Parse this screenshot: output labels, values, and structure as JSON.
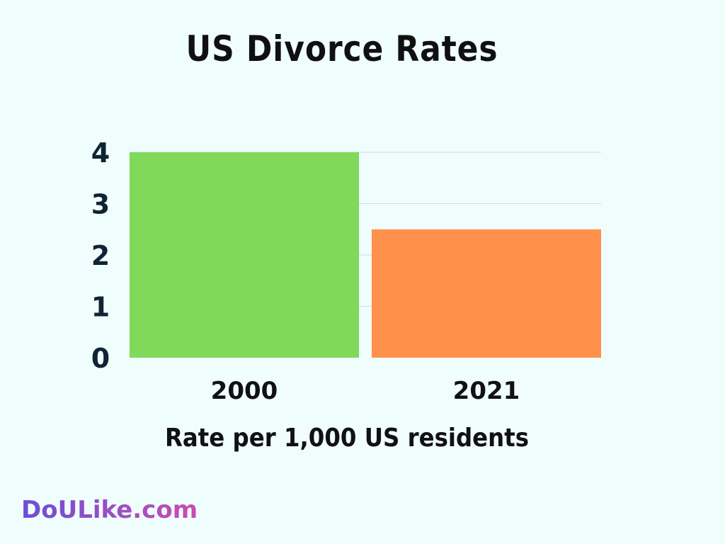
{
  "chart_data": {
    "type": "bar",
    "title": "US Divorce Rates",
    "categories": [
      "2000",
      "2021"
    ],
    "values": [
      4.0,
      2.5
    ],
    "xlabel": "Rate per 1,000 US residents",
    "ylabel": "",
    "ylim": [
      0,
      4
    ],
    "yticks": [
      "0",
      "1",
      "2",
      "3",
      "4"
    ],
    "grid": true,
    "colors": [
      "#80d95a",
      "#ff914d"
    ]
  },
  "brand": {
    "text": "DoULike.com"
  }
}
